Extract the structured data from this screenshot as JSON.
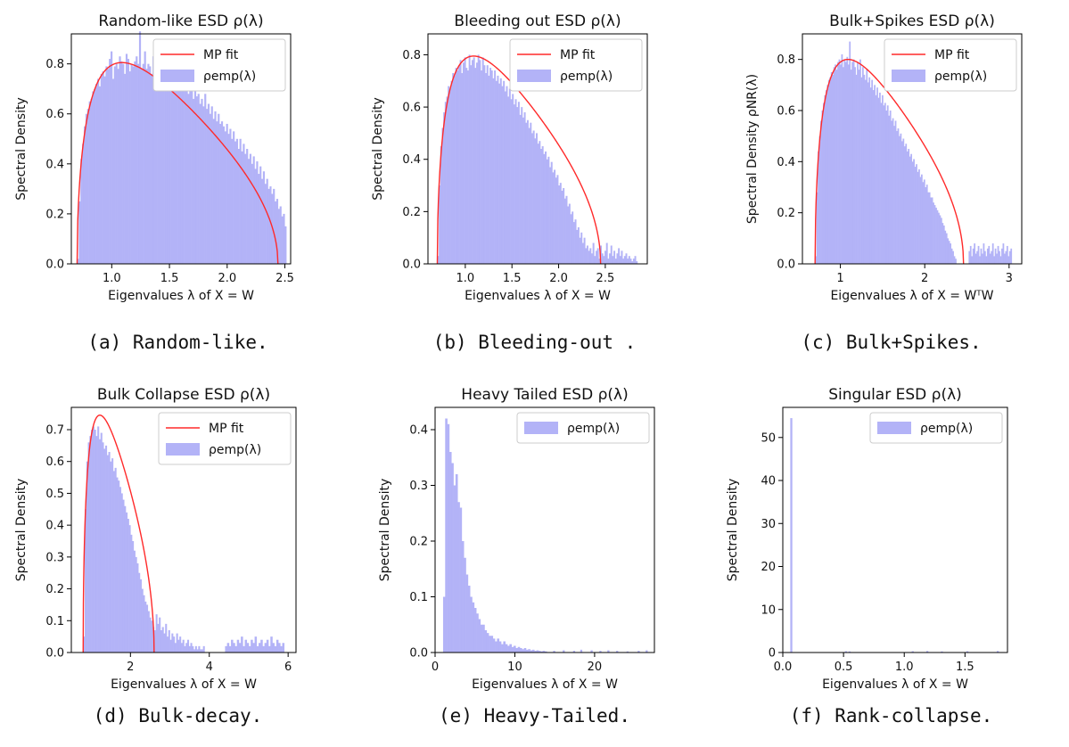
{
  "chart_data": [
    {
      "id": "a",
      "type": "bar",
      "title": "Random-like ESD ρ(λ)",
      "xlabel": "Eigenvalues λ of X = W",
      "ylabel": "Spectral Density",
      "xlim": [
        0.65,
        2.55
      ],
      "ylim": [
        0,
        0.92
      ],
      "xticks": [
        1.0,
        1.5,
        2.0,
        2.5
      ],
      "xtick_labels": [
        "1.0",
        "1.5",
        "2.0",
        "2.5"
      ],
      "yticks": [
        0,
        0.2,
        0.4,
        0.6,
        0.8
      ],
      "ytick_labels": [
        "0.0",
        "0.2",
        "0.4",
        "0.6",
        "0.8"
      ],
      "legend": {
        "position": "top-right",
        "entries": [
          {
            "label": "MP fit",
            "kind": "line",
            "color": "#ff2a2a"
          },
          {
            "label": "ρemp(λ)",
            "kind": "patch",
            "color": "#b3b3f7"
          }
        ]
      },
      "mp_fit": {
        "lambda_min": 0.7,
        "lambda_max": 2.44,
        "peak_x": 1.1,
        "peak_y": 0.805
      },
      "histogram": {
        "x_start": 0.7,
        "bin_width": 0.0145,
        "densities": [
          0.02,
          0.25,
          0.42,
          0.48,
          0.55,
          0.6,
          0.62,
          0.65,
          0.66,
          0.69,
          0.7,
          0.72,
          0.74,
          0.71,
          0.76,
          0.77,
          0.75,
          0.79,
          0.78,
          0.82,
          0.85,
          0.74,
          0.79,
          0.8,
          0.78,
          0.83,
          0.81,
          0.8,
          0.76,
          0.84,
          0.82,
          0.77,
          0.8,
          0.79,
          0.81,
          0.83,
          0.8,
          0.93,
          0.78,
          0.8,
          0.85,
          0.78,
          0.8,
          0.79,
          0.76,
          0.83,
          0.8,
          0.74,
          0.82,
          0.86,
          0.76,
          0.79,
          0.75,
          0.74,
          0.78,
          0.77,
          0.73,
          0.8,
          0.72,
          0.75,
          0.74,
          0.7,
          0.76,
          0.72,
          0.7,
          0.73,
          0.68,
          0.72,
          0.69,
          0.66,
          0.71,
          0.67,
          0.68,
          0.64,
          0.66,
          0.63,
          0.68,
          0.62,
          0.64,
          0.6,
          0.63,
          0.58,
          0.61,
          0.57,
          0.6,
          0.56,
          0.57,
          0.55,
          0.53,
          0.56,
          0.52,
          0.54,
          0.5,
          0.53,
          0.49,
          0.5,
          0.46,
          0.5,
          0.45,
          0.48,
          0.44,
          0.46,
          0.42,
          0.44,
          0.4,
          0.43,
          0.38,
          0.41,
          0.36,
          0.39,
          0.34,
          0.37,
          0.32,
          0.34,
          0.3,
          0.31,
          0.28,
          0.3,
          0.25,
          0.26,
          0.22,
          0.23,
          0.19,
          0.2,
          0.15
        ]
      }
    },
    {
      "id": "b",
      "type": "bar",
      "title": "Bleeding out ESD ρ(λ)",
      "xlabel": "Eigenvalues λ of X = W",
      "ylabel": "Spectral Density",
      "xlim": [
        0.6,
        2.95
      ],
      "ylim": [
        0,
        0.88
      ],
      "xticks": [
        1.0,
        1.5,
        2.0,
        2.5
      ],
      "xtick_labels": [
        "1.0",
        "1.5",
        "2.0",
        "2.5"
      ],
      "yticks": [
        0,
        0.2,
        0.4,
        0.6,
        0.8
      ],
      "ytick_labels": [
        "0.0",
        "0.2",
        "0.4",
        "0.6",
        "0.8"
      ],
      "legend": {
        "position": "top-right",
        "entries": [
          {
            "label": "MP fit",
            "kind": "line",
            "color": "#ff2a2a"
          },
          {
            "label": "ρemp(λ)",
            "kind": "patch",
            "color": "#b3b3f7"
          }
        ]
      },
      "mp_fit": {
        "lambda_min": 0.7,
        "lambda_max": 2.45,
        "peak_x": 1.1,
        "peak_y": 0.795
      },
      "histogram": {
        "x_start": 0.7,
        "bin_width": 0.016,
        "densities": [
          0.03,
          0.3,
          0.45,
          0.52,
          0.58,
          0.62,
          0.64,
          0.68,
          0.67,
          0.7,
          0.73,
          0.72,
          0.75,
          0.74,
          0.76,
          0.78,
          0.73,
          0.77,
          0.79,
          0.75,
          0.74,
          0.8,
          0.76,
          0.78,
          0.79,
          0.75,
          0.77,
          0.8,
          0.78,
          0.74,
          0.79,
          0.76,
          0.73,
          0.76,
          0.72,
          0.75,
          0.74,
          0.71,
          0.74,
          0.7,
          0.72,
          0.69,
          0.71,
          0.68,
          0.7,
          0.66,
          0.68,
          0.64,
          0.67,
          0.63,
          0.65,
          0.61,
          0.63,
          0.6,
          0.62,
          0.57,
          0.6,
          0.56,
          0.58,
          0.54,
          0.55,
          0.52,
          0.54,
          0.5,
          0.51,
          0.48,
          0.5,
          0.46,
          0.47,
          0.44,
          0.45,
          0.42,
          0.43,
          0.4,
          0.41,
          0.37,
          0.39,
          0.35,
          0.36,
          0.33,
          0.34,
          0.3,
          0.31,
          0.28,
          0.29,
          0.25,
          0.26,
          0.22,
          0.23,
          0.19,
          0.2,
          0.16,
          0.17,
          0.13,
          0.14,
          0.1,
          0.12,
          0.08,
          0.1,
          0.06,
          0.07,
          0.05,
          0.06,
          0.04,
          0.08,
          0.03,
          0.05,
          0.06,
          0.02,
          0.07,
          0.04,
          0.03,
          0.05,
          0.08,
          0.02,
          0.04,
          0.07,
          0.03,
          0.05,
          0.02,
          0.04,
          0.06,
          0.03,
          0.05,
          0.02,
          0.03,
          0.04,
          0.02,
          0.03,
          0.02,
          0.01,
          0.02,
          0.03,
          0.01
        ]
      }
    },
    {
      "id": "c",
      "type": "bar",
      "title": "Bulk+Spikes ESD ρ(λ)",
      "xlabel": "Eigenvalues λ of X = WᵀW",
      "ylabel": "Spectral Density ρNR(λ)",
      "xlim": [
        0.55,
        3.15
      ],
      "ylim": [
        0,
        0.9
      ],
      "xticks": [
        1,
        2,
        3
      ],
      "xtick_labels": [
        "1",
        "2",
        "3"
      ],
      "yticks": [
        0,
        0.2,
        0.4,
        0.6,
        0.8
      ],
      "ytick_labels": [
        "0.0",
        "0.2",
        "0.4",
        "0.6",
        "0.8"
      ],
      "legend": {
        "position": "top-right",
        "entries": [
          {
            "label": "MP fit",
            "kind": "line",
            "color": "#ff2a2a"
          },
          {
            "label": "ρemp(λ)",
            "kind": "patch",
            "color": "#b3b3f7"
          }
        ]
      },
      "mp_fit": {
        "lambda_min": 0.7,
        "lambda_max": 2.46,
        "peak_x": 1.1,
        "peak_y": 0.8
      },
      "histogram": {
        "x_start": 0.7,
        "bin_width": 0.0155,
        "densities": [
          0.03,
          0.28,
          0.44,
          0.5,
          0.56,
          0.6,
          0.63,
          0.66,
          0.68,
          0.7,
          0.72,
          0.73,
          0.75,
          0.74,
          0.77,
          0.78,
          0.76,
          0.79,
          0.8,
          0.78,
          0.82,
          0.77,
          0.8,
          0.79,
          0.81,
          0.78,
          0.87,
          0.76,
          0.79,
          0.8,
          0.77,
          0.74,
          0.79,
          0.76,
          0.8,
          0.73,
          0.77,
          0.74,
          0.72,
          0.76,
          0.71,
          0.73,
          0.69,
          0.72,
          0.68,
          0.7,
          0.66,
          0.69,
          0.65,
          0.67,
          0.63,
          0.66,
          0.62,
          0.63,
          0.6,
          0.62,
          0.58,
          0.6,
          0.56,
          0.57,
          0.54,
          0.56,
          0.52,
          0.53,
          0.5,
          0.51,
          0.48,
          0.49,
          0.46,
          0.47,
          0.44,
          0.45,
          0.42,
          0.43,
          0.4,
          0.41,
          0.38,
          0.39,
          0.36,
          0.37,
          0.34,
          0.35,
          0.32,
          0.33,
          0.3,
          0.31,
          0.28,
          0.28,
          0.26,
          0.26,
          0.24,
          0.23,
          0.22,
          0.21,
          0.2,
          0.19,
          0.18,
          0.16,
          0.15,
          0.13,
          0.12,
          0.1,
          0.09,
          0.08,
          0.06,
          0.05,
          0.03,
          0.02
        ],
        "spikes_x_start": 2.52,
        "spikes_bin_width": 0.0155,
        "spikes": [
          0.05,
          0.07,
          0.03,
          0.06,
          0.08,
          0.04,
          0.05,
          0.07,
          0.03,
          0.06,
          0.04,
          0.08,
          0.05,
          0.03,
          0.06,
          0.07,
          0.04,
          0.05,
          0.08,
          0.03,
          0.06,
          0.04,
          0.07,
          0.05,
          0.03,
          0.06,
          0.08,
          0.04,
          0.05,
          0.07,
          0.03,
          0.05,
          0.06
        ]
      }
    },
    {
      "id": "d",
      "type": "bar",
      "title": "Bulk Collapse ESD ρ(λ)",
      "xlabel": "Eigenvalues λ of X = W",
      "ylabel": "Spectral Density",
      "xlim": [
        0.5,
        6.2
      ],
      "ylim": [
        0,
        0.77
      ],
      "xticks": [
        2,
        4,
        6
      ],
      "xtick_labels": [
        "2",
        "4",
        "6"
      ],
      "yticks": [
        0,
        0.1,
        0.2,
        0.3,
        0.4,
        0.5,
        0.6,
        0.7
      ],
      "ytick_labels": [
        "0.0",
        "0.1",
        "0.2",
        "0.3",
        "0.4",
        "0.5",
        "0.6",
        "0.7"
      ],
      "legend": {
        "position": "top-right",
        "entries": [
          {
            "label": "MP fit",
            "kind": "line",
            "color": "#ff2a2a"
          },
          {
            "label": "ρemp(λ)",
            "kind": "patch",
            "color": "#b3b3f7"
          }
        ]
      },
      "mp_fit": {
        "lambda_min": 0.8,
        "lambda_max": 2.6,
        "peak_x": 1.2,
        "peak_y": 0.745
      },
      "histogram": {
        "x_start": 0.8,
        "bin_width": 0.04,
        "densities": [
          0.05,
          0.45,
          0.6,
          0.66,
          0.68,
          0.7,
          0.71,
          0.7,
          0.68,
          0.71,
          0.67,
          0.69,
          0.66,
          0.64,
          0.65,
          0.62,
          0.63,
          0.6,
          0.61,
          0.57,
          0.58,
          0.55,
          0.54,
          0.52,
          0.5,
          0.48,
          0.46,
          0.44,
          0.42,
          0.4,
          0.37,
          0.35,
          0.32,
          0.3,
          0.28,
          0.25,
          0.23,
          0.2,
          0.18,
          0.16,
          0.15,
          0.13,
          0.11,
          0.1,
          0.08,
          0.07,
          0.12,
          0.09,
          0.11,
          0.07,
          0.08,
          0.06,
          0.09,
          0.05,
          0.07,
          0.04,
          0.06,
          0.05,
          0.03,
          0.06,
          0.04,
          0.05,
          0.03,
          0.04,
          0.02,
          0.03,
          0.04,
          0.02,
          0.03,
          0.02,
          0.01,
          0.02,
          0.01,
          0.02,
          0.01,
          0.01,
          0.02
        ],
        "spikes_x_start": 4.4,
        "spikes_bin_width": 0.05,
        "spikes": [
          0.02,
          0.03,
          0.02,
          0.04,
          0.03,
          0.02,
          0.04,
          0.03,
          0.05,
          0.02,
          0.04,
          0.03,
          0.02,
          0.04,
          0.03,
          0.05,
          0.02,
          0.03,
          0.04,
          0.02,
          0.03,
          0.04,
          0.02,
          0.05,
          0.03,
          0.02,
          0.04,
          0.03,
          0.02,
          0.03
        ]
      }
    },
    {
      "id": "e",
      "type": "bar",
      "title": "Heavy Tailed ESD ρ(λ)",
      "xlabel": "Eigenvalues λ of X = W",
      "ylabel": "Spectral Density",
      "xlim": [
        0,
        27.5
      ],
      "ylim": [
        0,
        0.44
      ],
      "xticks": [
        0,
        10,
        20
      ],
      "xtick_labels": [
        "0",
        "10",
        "20"
      ],
      "yticks": [
        0,
        0.1,
        0.2,
        0.3,
        0.4
      ],
      "ytick_labels": [
        "0.0",
        "0.1",
        "0.2",
        "0.3",
        "0.4"
      ],
      "legend": {
        "position": "top-right",
        "entries": [
          {
            "label": "ρemp(λ)",
            "kind": "patch",
            "color": "#b3b3f7"
          }
        ]
      },
      "histogram": {
        "x_start": 1.0,
        "bin_width": 0.26,
        "densities": [
          0.1,
          0.42,
          0.41,
          0.36,
          0.34,
          0.3,
          0.32,
          0.27,
          0.26,
          0.2,
          0.17,
          0.14,
          0.12,
          0.1,
          0.09,
          0.08,
          0.07,
          0.06,
          0.05,
          0.05,
          0.04,
          0.035,
          0.03,
          0.03,
          0.025,
          0.02,
          0.025,
          0.02,
          0.015,
          0.02,
          0.015,
          0.012,
          0.015,
          0.01,
          0.012,
          0.008,
          0.01,
          0.008,
          0.006,
          0.008,
          0.005,
          0.006,
          0.004,
          0.005,
          0.003,
          0.004,
          0.003,
          0.002,
          0.003,
          0.002
        ],
        "tail": [
          [
            14.8,
            0.003
          ],
          [
            16.0,
            0.004
          ],
          [
            17.3,
            0.003
          ],
          [
            18.2,
            0.005
          ],
          [
            19.5,
            0.004
          ],
          [
            20.6,
            0.003
          ],
          [
            21.6,
            0.004
          ],
          [
            22.7,
            0.003
          ],
          [
            24.0,
            0.002
          ],
          [
            25.4,
            0.003
          ],
          [
            26.4,
            0.004
          ]
        ]
      }
    },
    {
      "id": "f",
      "type": "bar",
      "title": "Singular ESD ρ(λ)",
      "xlabel": "Eigenvalues λ of X = W",
      "ylabel": "Spectral Density",
      "xlim": [
        0,
        1.85
      ],
      "ylim": [
        0,
        57
      ],
      "xticks": [
        0,
        0.5,
        1.0,
        1.5
      ],
      "xtick_labels": [
        "0.0",
        "0.5",
        "1.0",
        "1.5"
      ],
      "yticks": [
        0,
        10,
        20,
        30,
        40,
        50
      ],
      "ytick_labels": [
        "0",
        "10",
        "20",
        "30",
        "40",
        "50"
      ],
      "legend": {
        "position": "top-right",
        "entries": [
          {
            "label": "ρemp(λ)",
            "kind": "patch",
            "color": "#b3b3f7"
          }
        ]
      },
      "histogram": {
        "bars": [
          [
            0.07,
            54.5
          ],
          [
            0.52,
            0.3
          ],
          [
            0.55,
            0.25
          ],
          [
            1.07,
            0.3
          ],
          [
            1.19,
            0.35
          ],
          [
            1.31,
            0.25
          ],
          [
            1.52,
            0.3
          ],
          [
            1.77,
            0.35
          ]
        ],
        "bar_width": 0.017
      }
    }
  ],
  "captions": [
    "(a) Random-like.",
    "(b) Bleeding-out .",
    "(c) Bulk+Spikes.",
    "(d) Bulk-decay.",
    "(e) Heavy-Tailed.",
    "(f) Rank-collapse."
  ]
}
